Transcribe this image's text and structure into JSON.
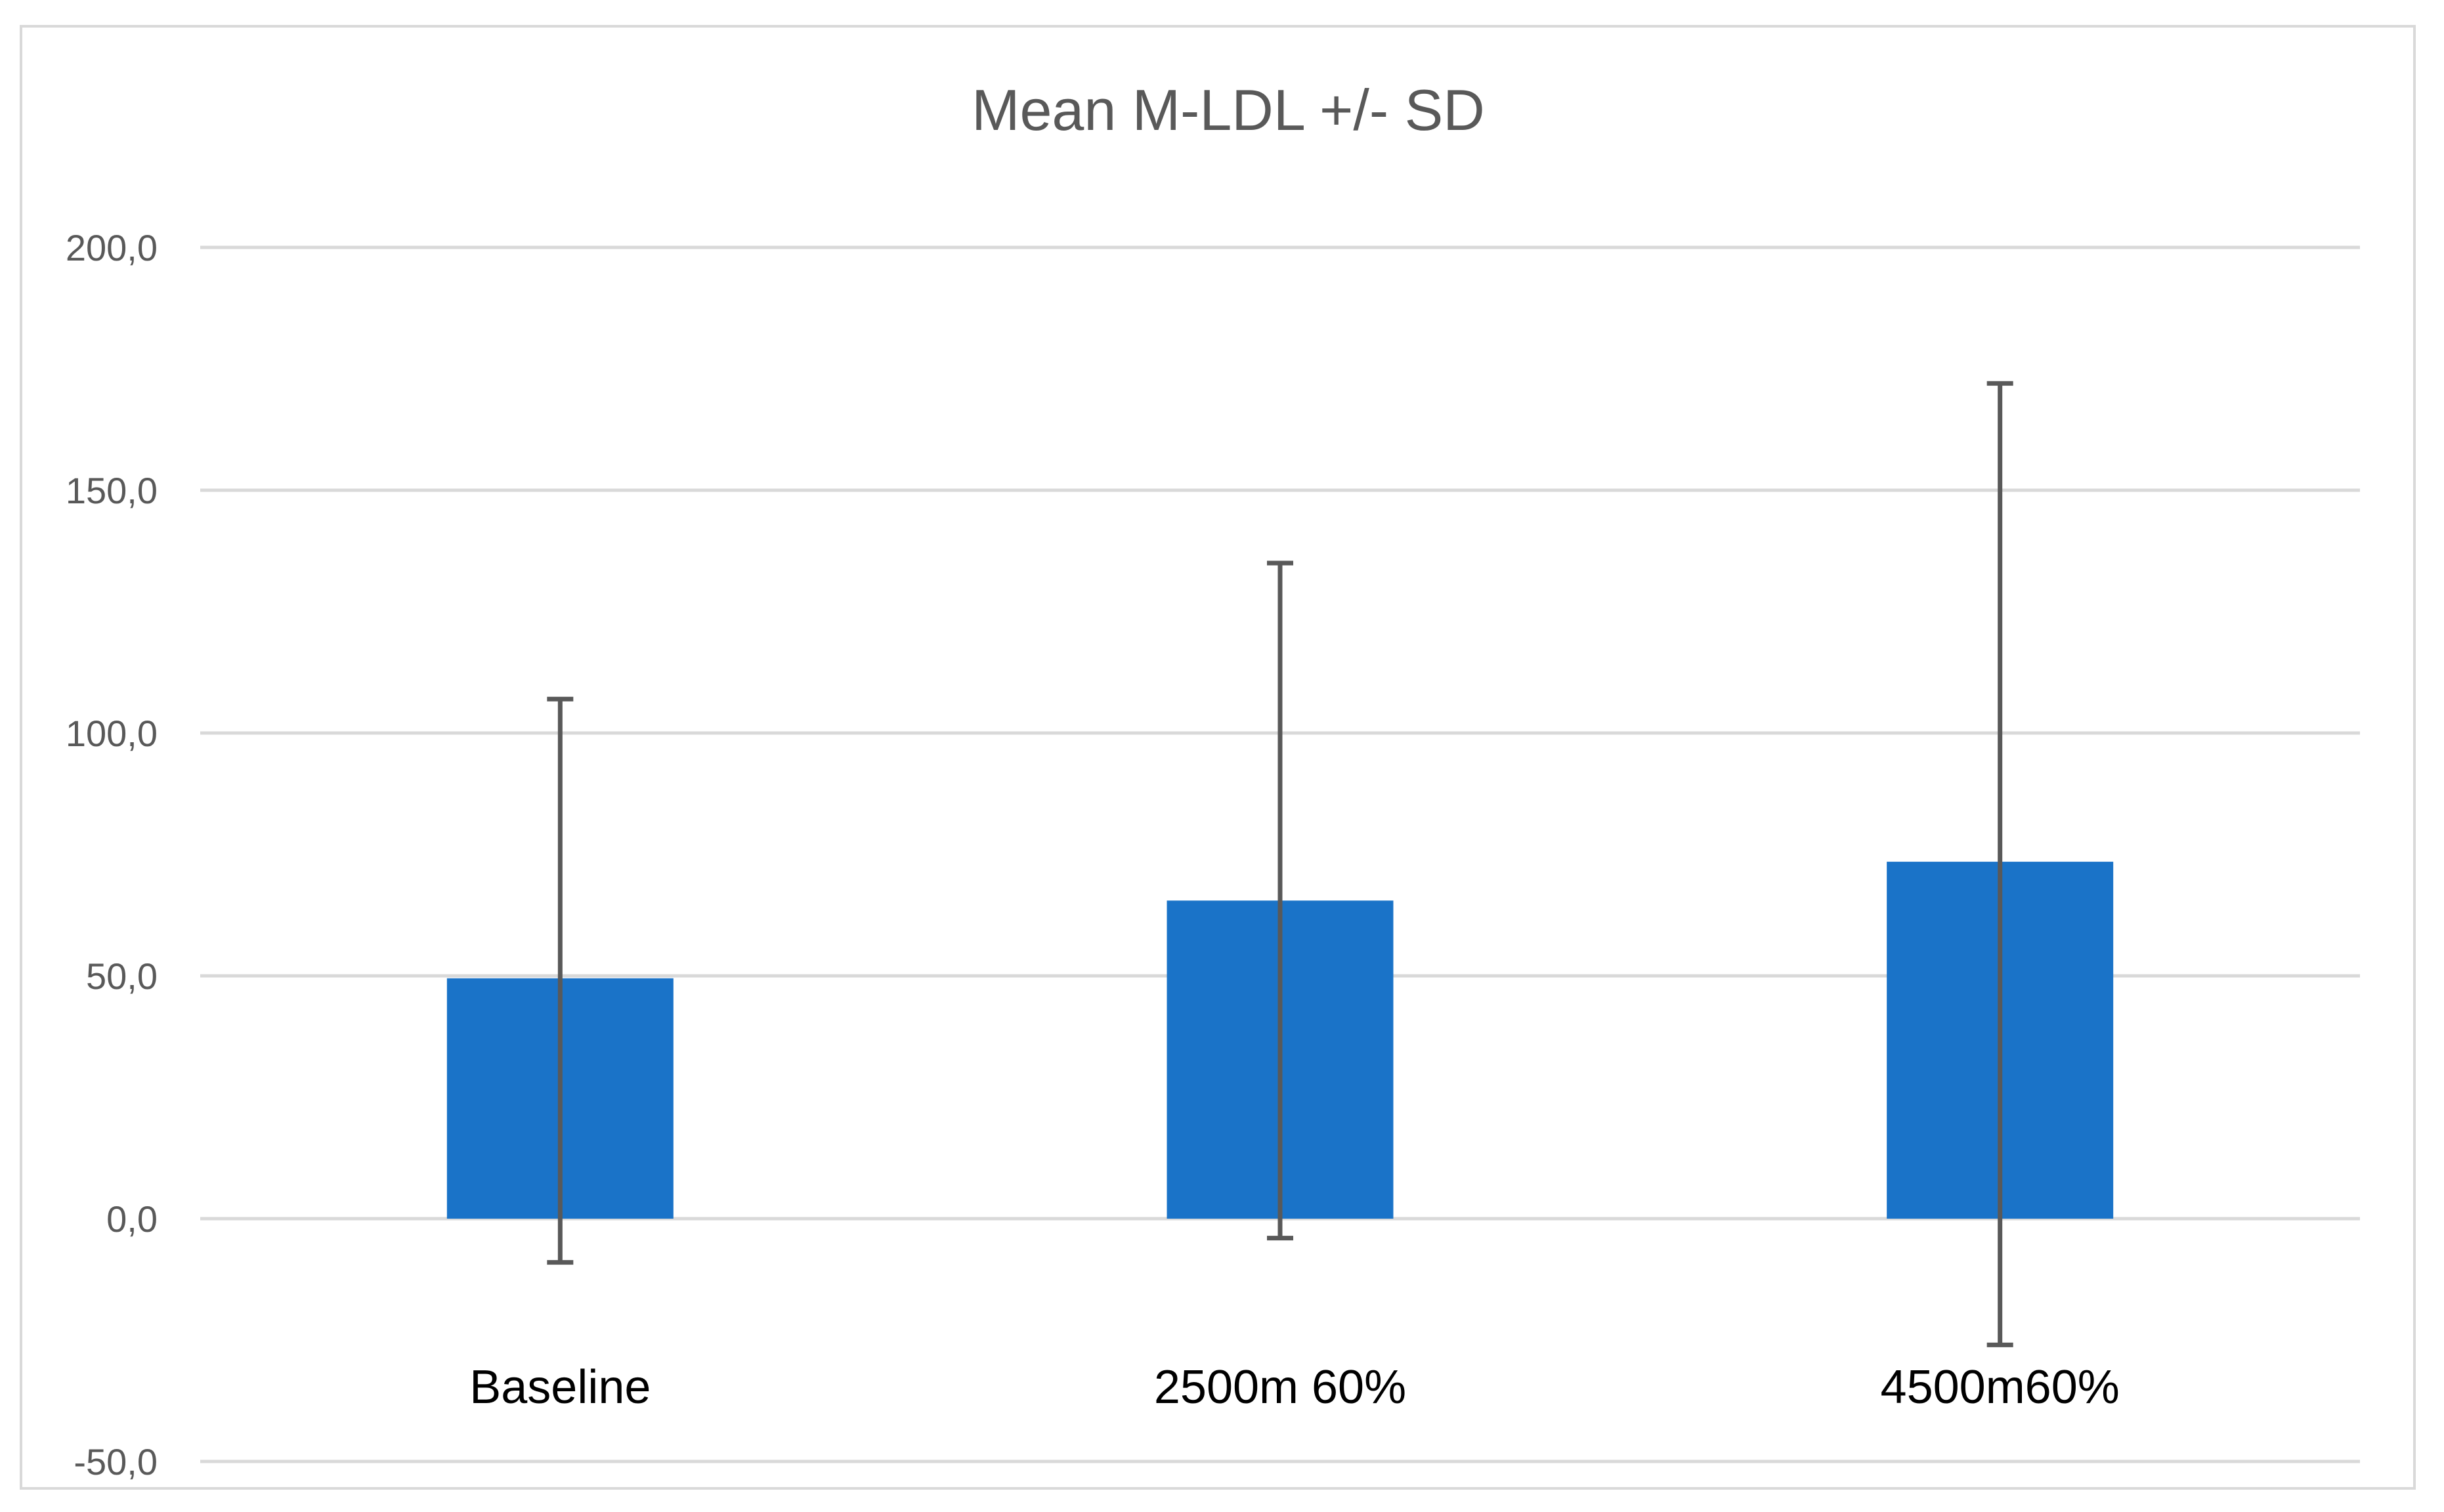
{
  "chart_data": {
    "type": "bar",
    "title": "Mean M-LDL +/- SD",
    "categories": [
      "Baseline",
      "2500m 60%",
      "4500m60%"
    ],
    "values": [
      49.5,
      65.5,
      73.5
    ],
    "error_bars": [
      {
        "low": -9,
        "high": 107
      },
      {
        "low": -4,
        "high": 135
      },
      {
        "low": -26,
        "high": 172
      }
    ],
    "ylim": [
      -50,
      200
    ],
    "yticks": [
      200,
      150,
      100,
      50,
      0,
      -50
    ],
    "ytick_labels": [
      "200,0",
      "150,0",
      "100,0",
      "50,0",
      "0,0",
      "-50,0"
    ],
    "grid": true,
    "bar_color": "#1a73c8",
    "errorbar_color": "#595959",
    "gridline_color": "#d9d9d9"
  }
}
